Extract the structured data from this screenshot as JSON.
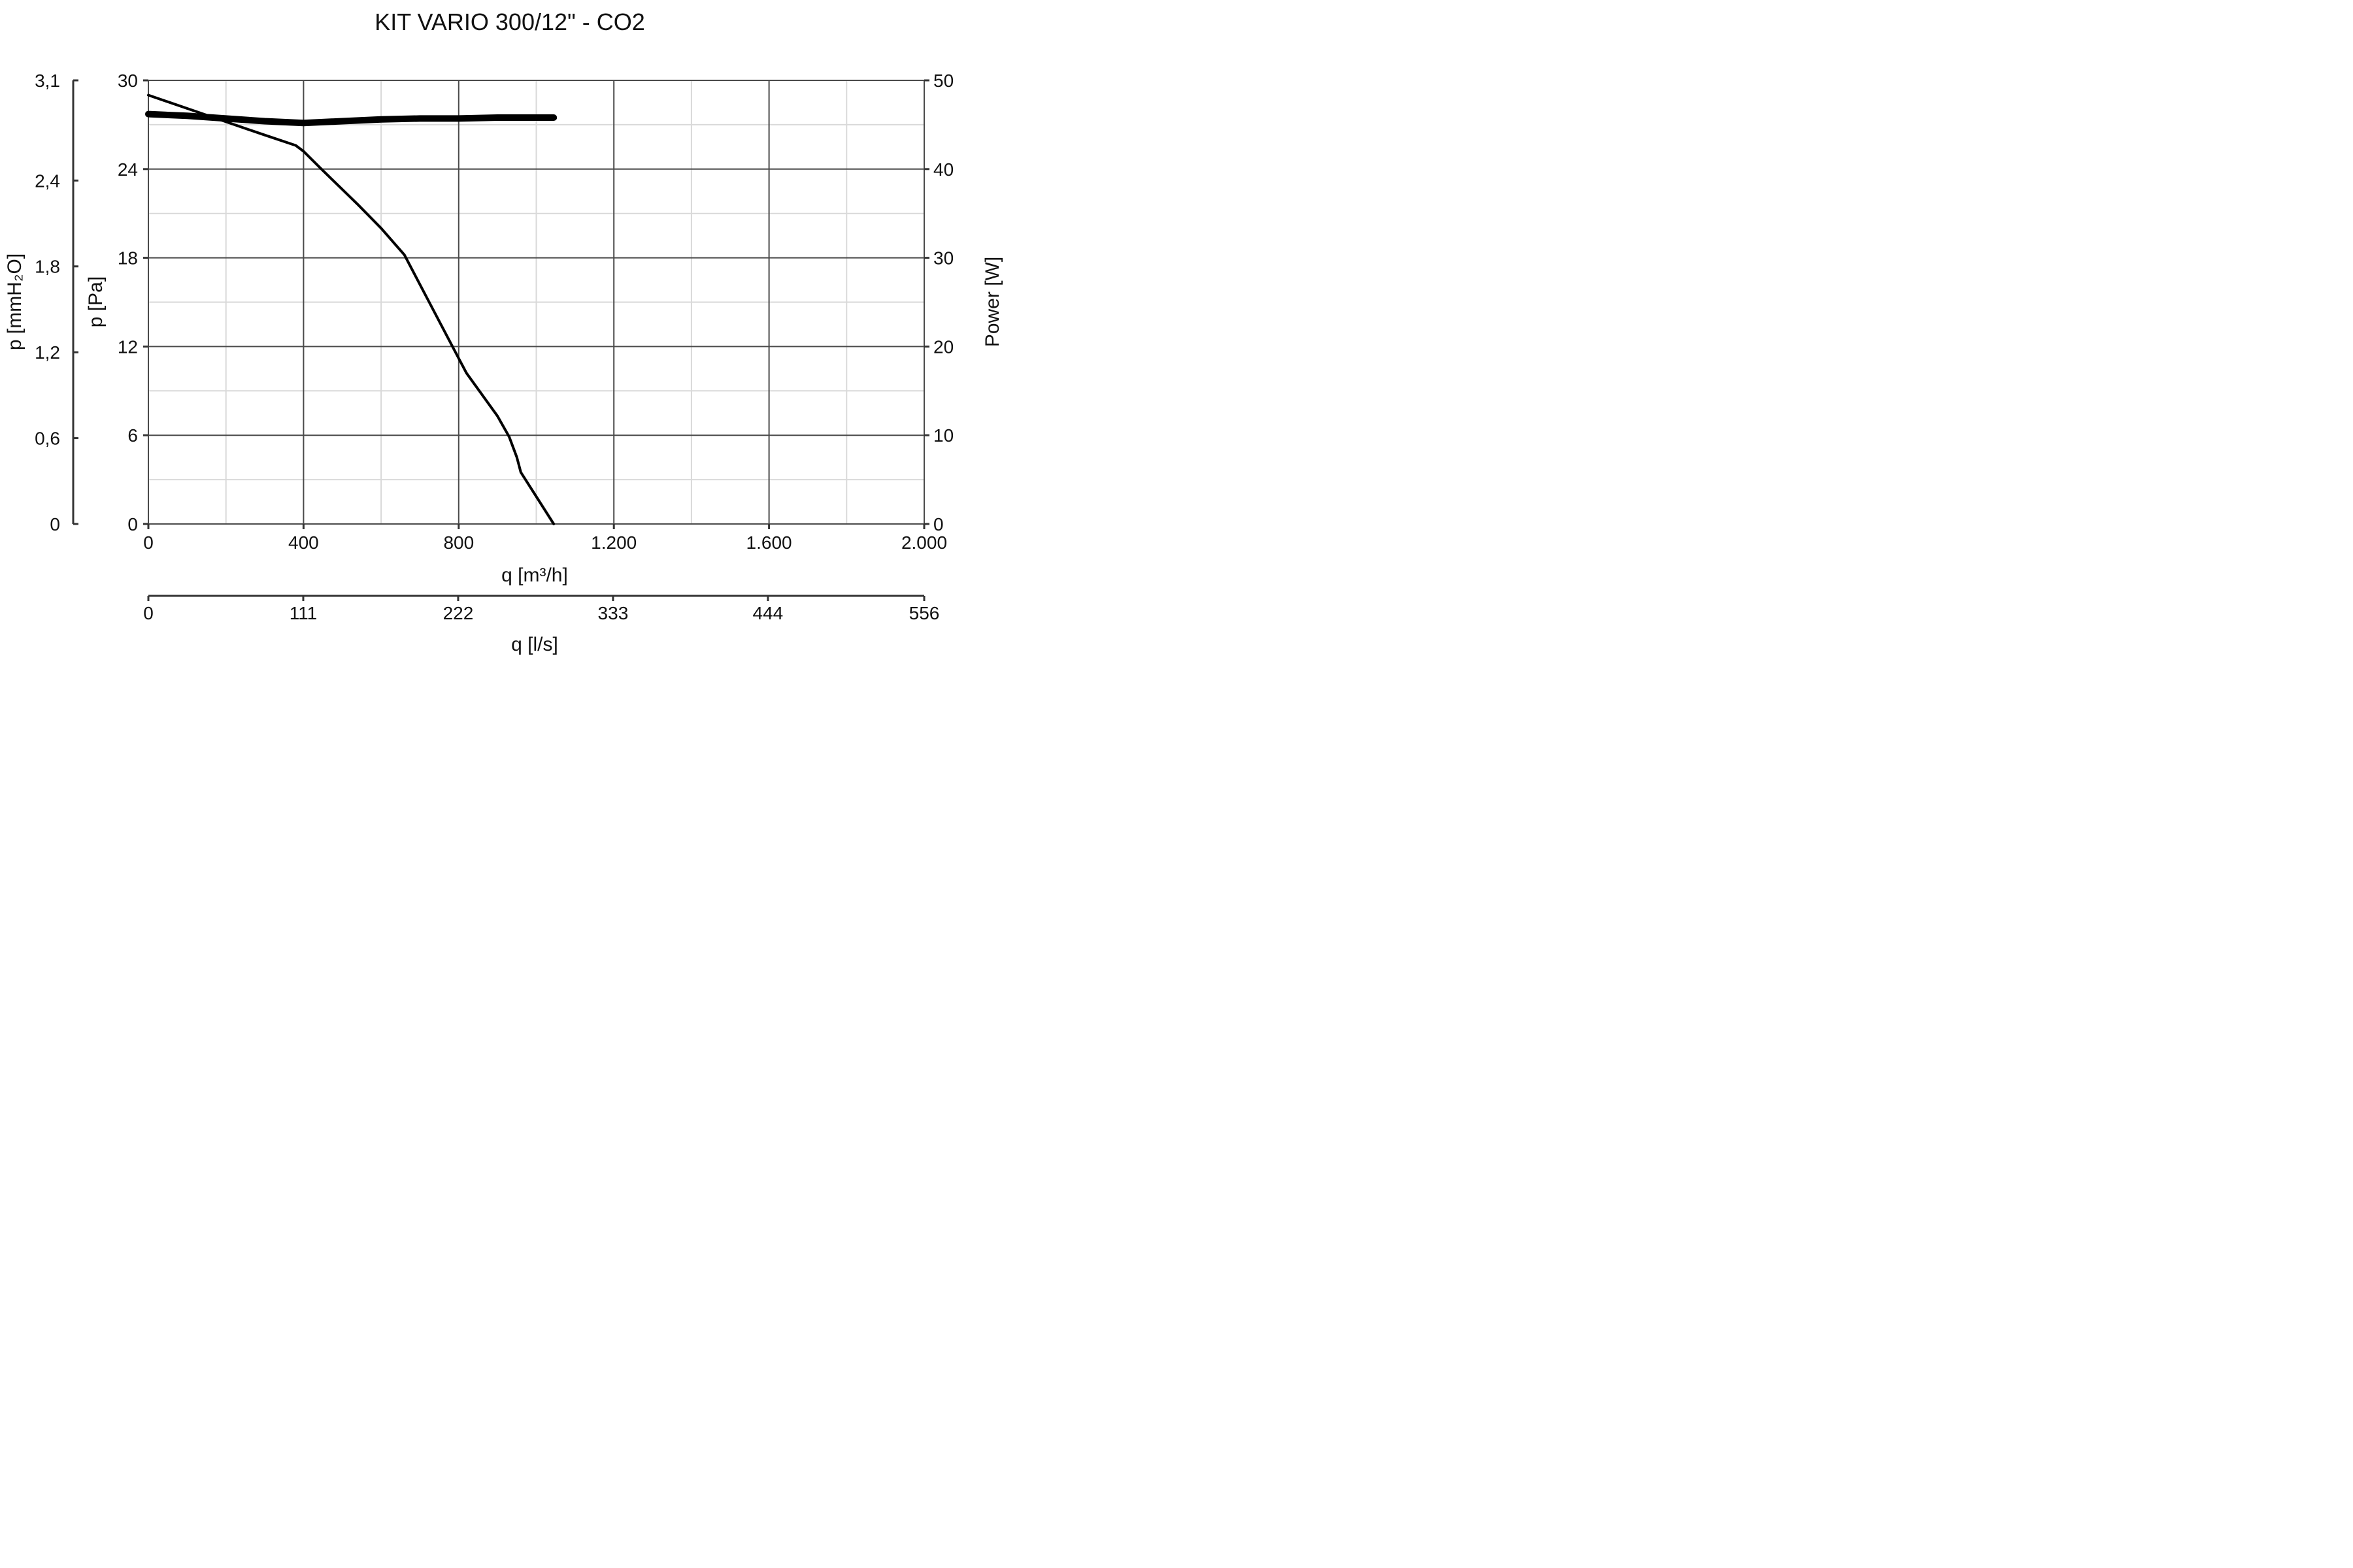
{
  "chart_data": {
    "type": "line",
    "title": "KIT VARIO 300/12\" - CO2",
    "x_axis": {
      "label": "q [m³/h]",
      "range": [
        0,
        2000
      ],
      "ticks": [
        0,
        400,
        800,
        1200,
        1600,
        2000
      ],
      "tick_labels": [
        "0",
        "400",
        "800",
        "1.200",
        "1.600",
        "2.000"
      ],
      "minor_step": 200
    },
    "x2_axis": {
      "label": "q [l/s]",
      "range": [
        0,
        556
      ],
      "ticks": [
        0,
        111,
        222,
        333,
        444,
        556
      ],
      "tick_labels": [
        "0",
        "111",
        "222",
        "333",
        "444",
        "556"
      ]
    },
    "y_axis": {
      "label": "p [Pa]",
      "range": [
        0,
        30
      ],
      "ticks": [
        0,
        6,
        12,
        18,
        24,
        30
      ],
      "tick_labels": [
        "0",
        "6",
        "12",
        "18",
        "24",
        "30"
      ],
      "minor_step": 3
    },
    "y_axis_outer": {
      "label": "p [mmH₂O]",
      "range": [
        0,
        3.1
      ],
      "ticks": [
        0,
        0.6,
        1.2,
        1.8,
        2.4,
        3.1
      ],
      "tick_labels": [
        "0",
        "0,6",
        "1,2",
        "1,8",
        "2,4",
        "3,1"
      ]
    },
    "y2_axis": {
      "label": "Power [W]",
      "range": [
        0,
        50
      ],
      "ticks": [
        0,
        10,
        20,
        30,
        40,
        50
      ],
      "tick_labels": [
        "0",
        "10",
        "20",
        "30",
        "40",
        "50"
      ]
    },
    "grid": true,
    "series": [
      {
        "axis": "y",
        "x": [
          0,
          100,
          200,
          300,
          380,
          400,
          450,
          540,
          600,
          660,
          720,
          800,
          820,
          900,
          930,
          950,
          960,
          1045
        ],
        "values": [
          29,
          28.1,
          27.2,
          26.3,
          25.6,
          25.2,
          23.9,
          21.6,
          20.0,
          18.2,
          15.2,
          11.2,
          10.2,
          7.3,
          5.9,
          4.5,
          3.5,
          0
        ]
      },
      {
        "axis": "y2",
        "x": [
          0,
          100,
          200,
          300,
          400,
          500,
          600,
          700,
          800,
          900,
          1045
        ],
        "values": [
          46.2,
          46.0,
          45.7,
          45.4,
          45.2,
          45.4,
          45.6,
          45.7,
          45.7,
          45.8,
          45.8
        ]
      }
    ]
  }
}
